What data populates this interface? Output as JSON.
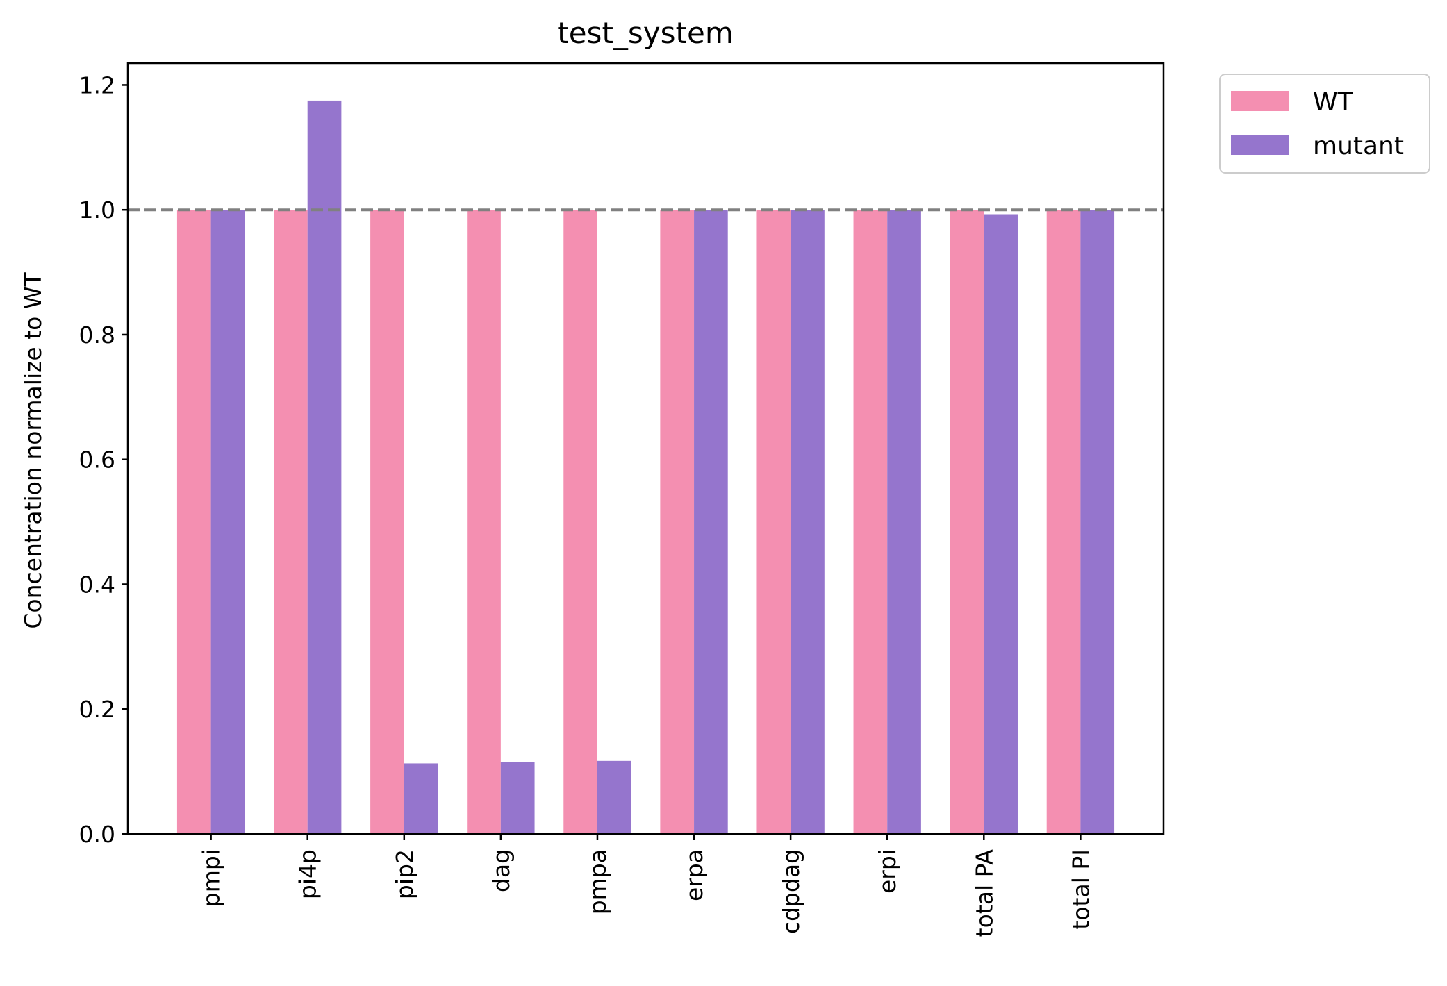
{
  "chart_data": {
    "type": "bar",
    "title": "test_system",
    "xlabel": "",
    "ylabel": "Concentration normalize to WT",
    "categories": [
      "pmpi",
      "pi4p",
      "pip2",
      "dag",
      "pmpa",
      "erpa",
      "cdpdag",
      "erpi",
      "total PA",
      "total PI"
    ],
    "series": [
      {
        "name": "WT",
        "color": "#f48fb1",
        "values": [
          1.0,
          1.0,
          1.0,
          1.0,
          1.0,
          1.0,
          1.0,
          1.0,
          1.0,
          1.0
        ]
      },
      {
        "name": "mutant",
        "color": "#9575cd",
        "values": [
          1.0,
          1.175,
          0.113,
          0.115,
          0.117,
          1.0,
          1.0,
          1.0,
          0.993,
          1.0
        ]
      }
    ],
    "ylim": [
      0,
      1.235
    ],
    "yticks": [
      "0.0",
      "0.2",
      "0.4",
      "0.6",
      "0.8",
      "1.0",
      "1.2"
    ],
    "reference_line": {
      "y": 1.0,
      "style": "dashed",
      "color": "#808080"
    },
    "grid": false,
    "legend_position": "outside top-right",
    "x_tick_rotation": "vertical"
  }
}
